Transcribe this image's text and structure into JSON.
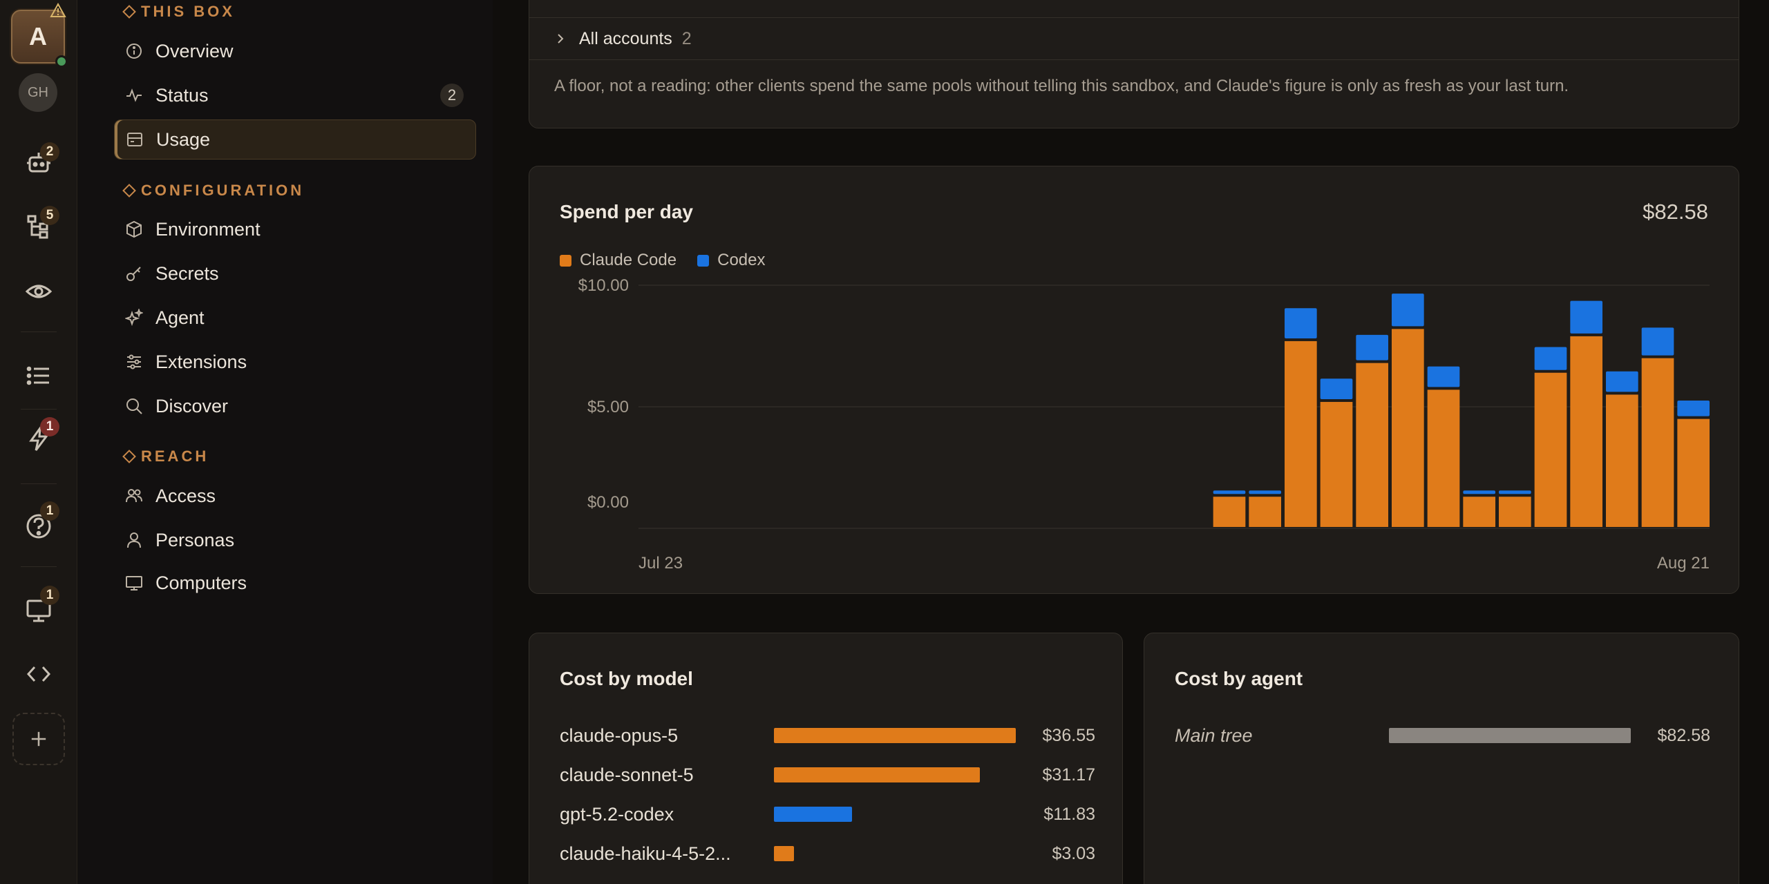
{
  "rail": {
    "avatar_letter": "A",
    "secondary_avatar": "GH",
    "badges": {
      "agents": "2",
      "tree": "5",
      "triggers": "1",
      "help": "1",
      "computers": "1"
    }
  },
  "nav": {
    "sections": [
      {
        "title": "THIS BOX",
        "items": [
          {
            "label": "Overview",
            "icon": "info-icon"
          },
          {
            "label": "Status",
            "icon": "pulse-icon",
            "count": "2"
          },
          {
            "label": "Usage",
            "icon": "usage-icon",
            "active": true
          }
        ]
      },
      {
        "title": "CONFIGURATION",
        "items": [
          {
            "label": "Environment",
            "icon": "cube-icon"
          },
          {
            "label": "Secrets",
            "icon": "key-icon"
          },
          {
            "label": "Agent",
            "icon": "sparkles-icon"
          },
          {
            "label": "Extensions",
            "icon": "sliders-icon"
          },
          {
            "label": "Discover",
            "icon": "search-icon"
          }
        ]
      },
      {
        "title": "REACH",
        "items": [
          {
            "label": "Access",
            "icon": "users-icon"
          },
          {
            "label": "Personas",
            "icon": "user-icon"
          },
          {
            "label": "Computers",
            "icon": "monitor-icon"
          }
        ]
      }
    ]
  },
  "accounts": {
    "label": "All accounts",
    "count": "2",
    "note": "A floor, not a reading: other clients spend the same pools without telling this sandbox, and Claude's figure is only as fresh as your last turn."
  },
  "spend": {
    "title": "Spend per day",
    "total": "$82.58"
  },
  "chart_data": {
    "type": "bar",
    "stacked": true,
    "x_start_label": "Jul 23",
    "x_end_label": "Aug 21",
    "ylim": [
      0,
      10
    ],
    "yticks": [
      "$10.00",
      "$5.00",
      "$0.00"
    ],
    "series": [
      {
        "name": "Claude Code",
        "color": "#e07b1a",
        "values": [
          0,
          0,
          0,
          0,
          0,
          0,
          0,
          0,
          0,
          0,
          0,
          0,
          0,
          0,
          0,
          0,
          1.3,
          1.3,
          7.7,
          5.2,
          6.8,
          8.2,
          5.7,
          1.3,
          1.3,
          6.4,
          7.9,
          5.5,
          7.0,
          4.5
        ]
      },
      {
        "name": "Codex",
        "color": "#1a73e0",
        "values": [
          0,
          0,
          0,
          0,
          0,
          0,
          0,
          0,
          0,
          0,
          0,
          0,
          0,
          0,
          0,
          0,
          0.2,
          0.2,
          1.3,
          0.9,
          1.1,
          1.4,
          0.9,
          0.2,
          0.2,
          1.0,
          1.4,
          0.9,
          1.2,
          0.7
        ]
      }
    ]
  },
  "cost_by_model": {
    "title": "Cost by model",
    "rows": [
      {
        "name": "claude-opus-5",
        "value": "$36.55",
        "amount": 36.55,
        "color": "#e07b1a"
      },
      {
        "name": "claude-sonnet-5",
        "value": "$31.17",
        "amount": 31.17,
        "color": "#e07b1a"
      },
      {
        "name": "gpt-5.2-codex",
        "value": "$11.83",
        "amount": 11.83,
        "color": "#1a73e0"
      },
      {
        "name": "claude-haiku-4-5-2...",
        "value": "$3.03",
        "amount": 3.03,
        "color": "#e07b1a"
      }
    ]
  },
  "cost_by_agent": {
    "title": "Cost by agent",
    "rows": [
      {
        "name": "Main tree",
        "value": "$82.58",
        "amount": 82.58,
        "color": "#8a8580"
      }
    ]
  }
}
